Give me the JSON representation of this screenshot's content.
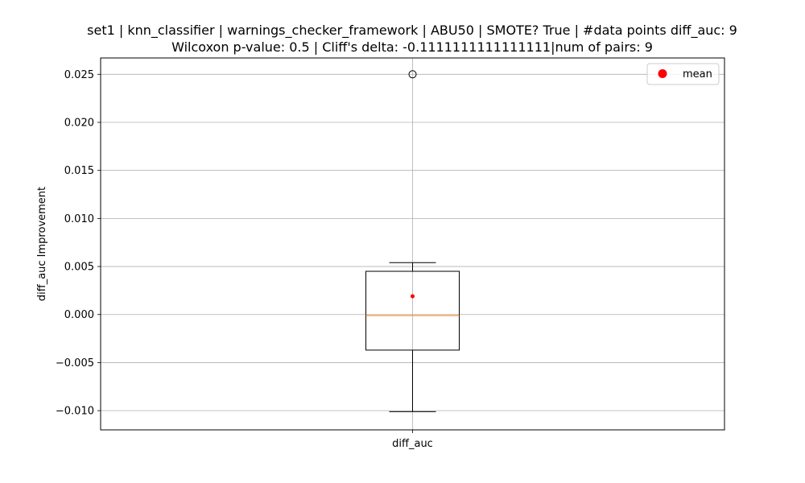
{
  "chart_data": {
    "type": "box",
    "title_lines": [
      "set1 | knn_classifier | warnings_checker_framework | ABU50 | SMOTE? True | #data points diff_auc: 9",
      "Wilcoxon p-value: 0.5 | Cliff's delta: -0.1111111111111111|num of pairs: 9"
    ],
    "xlabel": "",
    "ylabel": "diff_auc Improvement",
    "categories": [
      "diff_auc"
    ],
    "ylim": [
      -0.012,
      0.0267
    ],
    "yticks": [
      -0.01,
      -0.005,
      0.0,
      0.005,
      0.01,
      0.015,
      0.02,
      0.025
    ],
    "ytick_labels": [
      "−0.010",
      "−0.005",
      "0.000",
      "0.005",
      "0.010",
      "0.015",
      "0.020",
      "0.025"
    ],
    "grid": true,
    "legend": {
      "placement": "top-right",
      "entries": [
        {
          "label": "mean",
          "color": "#ff0000",
          "marker": "circle"
        }
      ]
    },
    "boxes": [
      {
        "category": "diff_auc",
        "whisker_low": -0.0101,
        "q1": -0.0037,
        "median": -0.0001,
        "q3": 0.0045,
        "whisker_high": 0.0054,
        "mean": 0.0019,
        "outliers": [
          0.025
        ]
      }
    ],
    "colors": {
      "box": "#000000",
      "median": "#ff7f0e",
      "mean": "#ff0000",
      "grid": "#b0b0b0"
    }
  }
}
